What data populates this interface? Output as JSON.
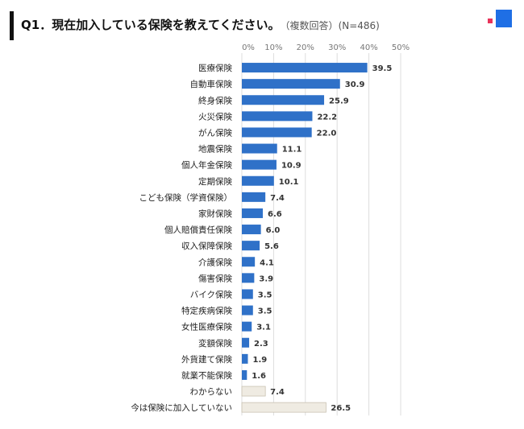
{
  "header": {
    "question": "Q1．現在加入している保険を教えてください。",
    "note": "（複数回答）",
    "sample": "(N=486)"
  },
  "colors": {
    "bar": "#2f71c8",
    "bar_other": "#efebe2",
    "bar_other_stroke": "#c9c2b2",
    "grid": "#dddddd",
    "logo_red": "#e8335a",
    "logo_blue": "#1f6fe5"
  },
  "chart_data": {
    "type": "bar",
    "orientation": "horizontal",
    "title": "Q1．現在加入している保険を教えてください。",
    "xlim": [
      0,
      50
    ],
    "x_ticks": [
      "0%",
      "10%",
      "20%",
      "30%",
      "40%",
      "50%"
    ],
    "grid": true,
    "categories": [
      "医療保険",
      "自動車保険",
      "終身保険",
      "火災保険",
      "がん保険",
      "地震保険",
      "個人年金保険",
      "定期保険",
      "こども保険（学資保険）",
      "家財保険",
      "個人賠償責任保険",
      "収入保障保険",
      "介護保険",
      "傷害保険",
      "バイク保険",
      "特定疾病保険",
      "女性医療保険",
      "変額保険",
      "外貨建て保険",
      "就業不能保険",
      "わからない",
      "今は保険に加入していない"
    ],
    "values": [
      39.5,
      30.9,
      25.9,
      22.2,
      22.0,
      11.1,
      10.9,
      10.1,
      7.4,
      6.6,
      6.0,
      5.6,
      4.1,
      3.9,
      3.5,
      3.5,
      3.1,
      2.3,
      1.9,
      1.6,
      7.4,
      26.5
    ],
    "value_labels": [
      "39.5",
      "30.9",
      "25.9",
      "22.2",
      "22.0",
      "11.1",
      "10.9",
      "10.1",
      "7.4",
      "6.6",
      "6.0",
      "5.6",
      "4.1",
      "3.9",
      "3.5",
      "3.5",
      "3.1",
      "2.3",
      "1.9",
      "1.6",
      "7.4",
      "26.5"
    ],
    "highlight_other": [
      false,
      false,
      false,
      false,
      false,
      false,
      false,
      false,
      false,
      false,
      false,
      false,
      false,
      false,
      false,
      false,
      false,
      false,
      false,
      false,
      true,
      true
    ]
  }
}
